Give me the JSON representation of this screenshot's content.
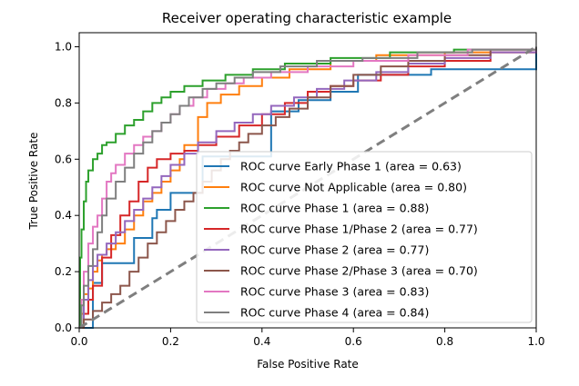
{
  "chart_data": {
    "type": "line",
    "title": "Receiver operating characteristic example",
    "xlabel": "False Positive Rate",
    "ylabel": "True Positive Rate",
    "xlim": [
      0.0,
      1.0
    ],
    "ylim": [
      0.0,
      1.05
    ],
    "xticks": [
      0.0,
      0.2,
      0.4,
      0.6,
      0.8,
      1.0
    ],
    "xtick_labels": [
      "0.0",
      "0.2",
      "0.4",
      "0.6",
      "0.8",
      "1.0"
    ],
    "yticks": [
      0.0,
      0.2,
      0.4,
      0.6,
      0.8,
      1.0
    ],
    "ytick_labels": [
      "0.0",
      "0.2",
      "0.4",
      "0.6",
      "0.8",
      "1.0"
    ],
    "grid": false,
    "legend_position": "lower-right",
    "chance_line": {
      "x": [
        0,
        1
      ],
      "y": [
        0,
        1
      ],
      "color": "#7f7f7f",
      "style": "dashed"
    },
    "series": [
      {
        "name": "ROC curve Early Phase 1 (area = 0.63)",
        "color": "#1f77b4",
        "step": true,
        "x": [
          0,
          0.03,
          0.03,
          0.05,
          0.05,
          0.07,
          0.07,
          0.12,
          0.12,
          0.16,
          0.16,
          0.17,
          0.17,
          0.2,
          0.2,
          0.27,
          0.27,
          0.42,
          0.42,
          0.48,
          0.48,
          0.55,
          0.55,
          0.61,
          0.61,
          0.77,
          0.77,
          1.0,
          1.0,
          1.0
        ],
        "y": [
          0,
          0,
          0.16,
          0.16,
          0.23,
          0.23,
          0.23,
          0.23,
          0.32,
          0.32,
          0.39,
          0.39,
          0.42,
          0.42,
          0.48,
          0.48,
          0.61,
          0.61,
          0.77,
          0.77,
          0.81,
          0.81,
          0.84,
          0.84,
          0.9,
          0.9,
          0.92,
          0.92,
          0.97,
          1.0
        ]
      },
      {
        "name": "ROC curve Not Applicable (area = 0.80)",
        "color": "#ff7f0e",
        "step": true,
        "x": [
          0,
          0.005,
          0.01,
          0.02,
          0.03,
          0.04,
          0.05,
          0.06,
          0.08,
          0.1,
          0.12,
          0.14,
          0.16,
          0.18,
          0.2,
          0.22,
          0.23,
          0.26,
          0.28,
          0.31,
          0.35,
          0.4,
          0.46,
          0.55,
          0.65,
          0.8,
          1.0
        ],
        "y": [
          0,
          0.05,
          0.12,
          0.14,
          0.2,
          0.24,
          0.26,
          0.28,
          0.3,
          0.35,
          0.4,
          0.45,
          0.48,
          0.52,
          0.56,
          0.6,
          0.65,
          0.75,
          0.8,
          0.83,
          0.86,
          0.89,
          0.92,
          0.95,
          0.97,
          0.98,
          1.0
        ]
      },
      {
        "name": "ROC curve Phase 1 (area = 0.88)",
        "color": "#2ca02c",
        "step": true,
        "x": [
          0,
          0.002,
          0.005,
          0.01,
          0.015,
          0.02,
          0.03,
          0.04,
          0.05,
          0.06,
          0.08,
          0.1,
          0.12,
          0.14,
          0.16,
          0.18,
          0.2,
          0.23,
          0.27,
          0.32,
          0.38,
          0.45,
          0.55,
          0.68,
          0.82,
          1.0
        ],
        "y": [
          0,
          0.25,
          0.35,
          0.45,
          0.52,
          0.56,
          0.6,
          0.62,
          0.65,
          0.66,
          0.69,
          0.72,
          0.74,
          0.77,
          0.8,
          0.82,
          0.84,
          0.86,
          0.88,
          0.9,
          0.92,
          0.94,
          0.96,
          0.98,
          0.99,
          1.0
        ]
      },
      {
        "name": "ROC curve Phase 1/Phase 2 (area = 0.77)",
        "color": "#d62728",
        "step": true,
        "x": [
          0,
          0.01,
          0.02,
          0.03,
          0.05,
          0.07,
          0.09,
          0.11,
          0.13,
          0.15,
          0.17,
          0.2,
          0.23,
          0.26,
          0.3,
          0.35,
          0.4,
          0.45,
          0.5,
          0.55,
          0.6,
          0.66,
          0.72,
          0.8,
          0.9,
          1.0
        ],
        "y": [
          0,
          0.05,
          0.1,
          0.15,
          0.25,
          0.33,
          0.4,
          0.45,
          0.52,
          0.57,
          0.6,
          0.62,
          0.63,
          0.65,
          0.68,
          0.72,
          0.76,
          0.8,
          0.84,
          0.86,
          0.88,
          0.9,
          0.93,
          0.95,
          0.98,
          1.0
        ]
      },
      {
        "name": "ROC curve Phase 2 (area = 0.77)",
        "color": "#9467bd",
        "step": true,
        "x": [
          0,
          0.01,
          0.02,
          0.03,
          0.04,
          0.06,
          0.08,
          0.1,
          0.12,
          0.14,
          0.16,
          0.18,
          0.2,
          0.23,
          0.26,
          0.3,
          0.34,
          0.38,
          0.42,
          0.47,
          0.52,
          0.58,
          0.65,
          0.72,
          0.8,
          0.9,
          1.0
        ],
        "y": [
          0,
          0.1,
          0.17,
          0.22,
          0.26,
          0.3,
          0.34,
          0.38,
          0.42,
          0.46,
          0.5,
          0.54,
          0.58,
          0.62,
          0.66,
          0.7,
          0.73,
          0.76,
          0.79,
          0.82,
          0.85,
          0.88,
          0.91,
          0.94,
          0.96,
          0.98,
          1.0
        ]
      },
      {
        "name": "ROC curve Phase 2/Phase 3 (area = 0.70)",
        "color": "#8c564b",
        "step": true,
        "x": [
          0,
          0.01,
          0.03,
          0.05,
          0.07,
          0.09,
          0.11,
          0.13,
          0.15,
          0.17,
          0.19,
          0.21,
          0.23,
          0.25,
          0.27,
          0.29,
          0.31,
          0.33,
          0.35,
          0.37,
          0.4,
          0.43,
          0.46,
          0.5,
          0.55,
          0.6,
          0.66,
          0.72,
          0.8,
          0.9,
          1.0
        ],
        "y": [
          0,
          0.03,
          0.06,
          0.09,
          0.12,
          0.15,
          0.2,
          0.25,
          0.3,
          0.34,
          0.38,
          0.42,
          0.45,
          0.48,
          0.52,
          0.56,
          0.6,
          0.63,
          0.66,
          0.69,
          0.72,
          0.75,
          0.78,
          0.82,
          0.86,
          0.9,
          0.93,
          0.95,
          0.97,
          0.99,
          1.0
        ]
      },
      {
        "name": "ROC curve Phase 3 (area = 0.83)",
        "color": "#e377c2",
        "step": true,
        "x": [
          0,
          0.005,
          0.01,
          0.02,
          0.03,
          0.04,
          0.05,
          0.06,
          0.07,
          0.08,
          0.1,
          0.12,
          0.14,
          0.16,
          0.18,
          0.2,
          0.22,
          0.25,
          0.28,
          0.32,
          0.36,
          0.42,
          0.5,
          0.6,
          0.72,
          0.85,
          1.0
        ],
        "y": [
          0,
          0.1,
          0.2,
          0.3,
          0.36,
          0.4,
          0.46,
          0.52,
          0.55,
          0.58,
          0.62,
          0.65,
          0.68,
          0.7,
          0.73,
          0.76,
          0.79,
          0.82,
          0.85,
          0.87,
          0.89,
          0.91,
          0.93,
          0.95,
          0.97,
          0.99,
          1.0
        ]
      },
      {
        "name": "ROC curve Phase 4 (area = 0.84)",
        "color": "#7f7f7f",
        "step": true,
        "x": [
          0,
          0.005,
          0.01,
          0.02,
          0.03,
          0.04,
          0.05,
          0.06,
          0.08,
          0.1,
          0.12,
          0.14,
          0.16,
          0.18,
          0.2,
          0.22,
          0.24,
          0.27,
          0.3,
          0.34,
          0.38,
          0.44,
          0.52,
          0.62,
          0.74,
          0.86,
          1.0
        ],
        "y": [
          0,
          0.08,
          0.15,
          0.22,
          0.28,
          0.34,
          0.4,
          0.46,
          0.52,
          0.57,
          0.62,
          0.66,
          0.7,
          0.73,
          0.76,
          0.79,
          0.82,
          0.85,
          0.87,
          0.89,
          0.91,
          0.93,
          0.95,
          0.96,
          0.98,
          0.99,
          1.0
        ]
      }
    ]
  }
}
